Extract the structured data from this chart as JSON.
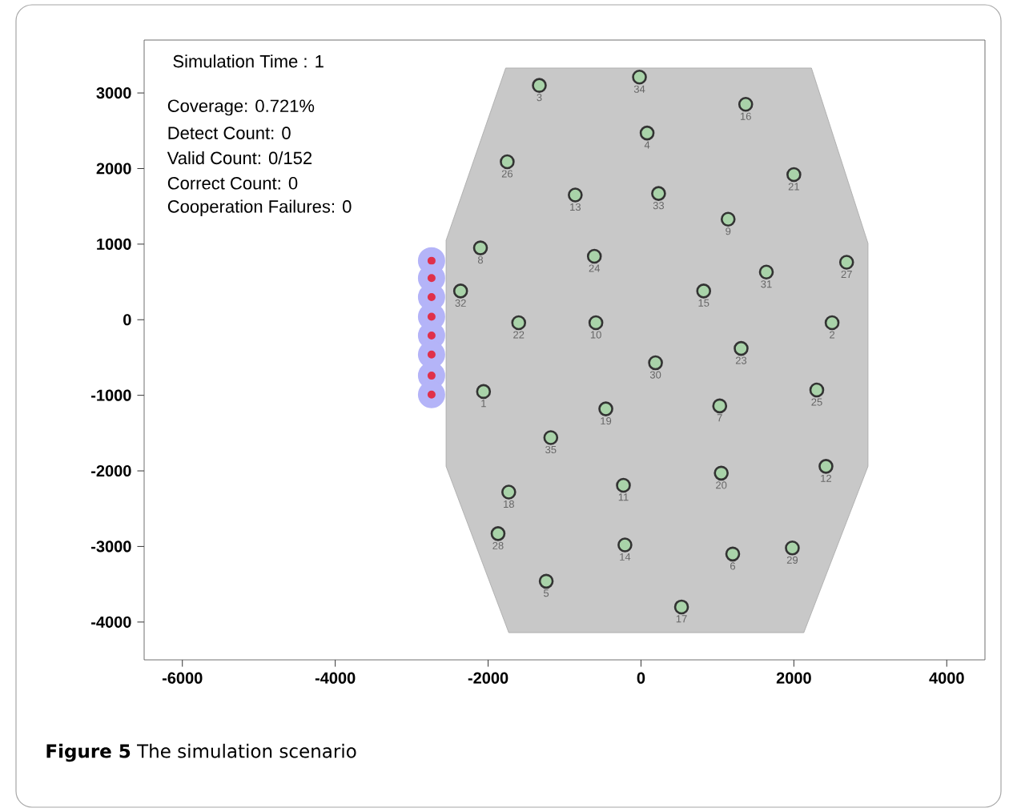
{
  "chart_data": {
    "type": "scatter",
    "title": "Simulation Time : 1",
    "xlim": [
      -6500,
      4500
    ],
    "ylim": [
      -4500,
      3700
    ],
    "xticks": [
      -6000,
      -4000,
      -2000,
      0,
      2000,
      4000
    ],
    "yticks": [
      -4000,
      -3000,
      -2000,
      -1000,
      0,
      1000,
      2000,
      3000
    ],
    "marker": "circle",
    "series": [
      {
        "type": "area",
        "marker": "none",
        "color": "#c8c8c8",
        "x": [
          -1770,
          2230,
          2970,
          2970,
          2130,
          -1730,
          -2550,
          -2550
        ],
        "values": [
          3330,
          3330,
          1010,
          -1940,
          -4140,
          -4140,
          -1940,
          1050
        ]
      },
      {
        "color": "#a9d3a9",
        "x": [
          -2060,
          2500,
          -1330,
          80,
          -1240,
          1200,
          1030,
          -2100,
          1140,
          -590,
          -230,
          2420,
          -860,
          -210,
          820,
          1370,
          530,
          -1730,
          -460,
          1050,
          2000,
          -1600,
          1310,
          -610,
          2300,
          -1750,
          2690,
          -1870,
          1980,
          190,
          1640,
          -2360,
          230,
          -20,
          -1180
        ],
        "values": [
          -950,
          -40,
          3100,
          2470,
          -3460,
          -3100,
          -1140,
          950,
          1330,
          -40,
          -2190,
          -1940,
          1650,
          -2980,
          380,
          2850,
          -3800,
          -2280,
          -1180,
          -2030,
          1920,
          -40,
          -380,
          840,
          -930,
          2090,
          760,
          -2830,
          -3020,
          -570,
          630,
          380,
          1670,
          3210,
          -1560
        ]
      },
      {
        "color": "#e0304a",
        "x": [
          -2740,
          -2740,
          -2740,
          -2740,
          -2740,
          -2740,
          -2740,
          -2740
        ],
        "values": [
          780,
          550,
          300,
          40,
          -210,
          -460,
          -740,
          -990
        ]
      }
    ],
    "annotations": [
      "Coverage: 0.721%",
      "Detect Count: 0",
      "Valid Count: 0/152",
      "Correct Count: 0",
      "Cooperation Failures: 0",
      {
        "text": "1",
        "x": -2060,
        "y": -950
      },
      {
        "text": "2",
        "x": 2500,
        "y": -40
      },
      {
        "text": "3",
        "x": -1330,
        "y": 3100
      },
      {
        "text": "4",
        "x": 80,
        "y": 2470
      },
      {
        "text": "5",
        "x": -1240,
        "y": -3460
      },
      {
        "text": "6",
        "x": 1200,
        "y": -3100
      },
      {
        "text": "7",
        "x": 1030,
        "y": -1140
      },
      {
        "text": "8",
        "x": -2100,
        "y": 950
      },
      {
        "text": "9",
        "x": 1140,
        "y": 1330
      },
      {
        "text": "10",
        "x": -590,
        "y": -40
      },
      {
        "text": "11",
        "x": -230,
        "y": -2190
      },
      {
        "text": "12",
        "x": 2420,
        "y": -1940
      },
      {
        "text": "13",
        "x": -860,
        "y": 1650
      },
      {
        "text": "14",
        "x": -210,
        "y": -2980
      },
      {
        "text": "15",
        "x": 820,
        "y": 380
      },
      {
        "text": "16",
        "x": 1370,
        "y": 2850
      },
      {
        "text": "17",
        "x": 530,
        "y": -3800
      },
      {
        "text": "18",
        "x": -1730,
        "y": -2280
      },
      {
        "text": "19",
        "x": -460,
        "y": -1180
      },
      {
        "text": "20",
        "x": 1050,
        "y": -2030
      },
      {
        "text": "21",
        "x": 2000,
        "y": 1920
      },
      {
        "text": "22",
        "x": -1600,
        "y": -40
      },
      {
        "text": "23",
        "x": 1310,
        "y": -380
      },
      {
        "text": "24",
        "x": -610,
        "y": 840
      },
      {
        "text": "25",
        "x": 2300,
        "y": -930
      },
      {
        "text": "26",
        "x": -1750,
        "y": 2090
      },
      {
        "text": "27",
        "x": 2690,
        "y": 760
      },
      {
        "text": "28",
        "x": -1870,
        "y": -2830
      },
      {
        "text": "29",
        "x": 1980,
        "y": -3020
      },
      {
        "text": "30",
        "x": 190,
        "y": -570
      },
      {
        "text": "31",
        "x": 1640,
        "y": 630
      },
      {
        "text": "32",
        "x": -2360,
        "y": 380
      },
      {
        "text": "33",
        "x": 230,
        "y": 1670
      },
      {
        "text": "34",
        "x": -20,
        "y": 3210
      },
      {
        "text": "35",
        "x": -1180,
        "y": -1560
      },
      "**Figure 5** The simulation scenario"
    ]
  }
}
